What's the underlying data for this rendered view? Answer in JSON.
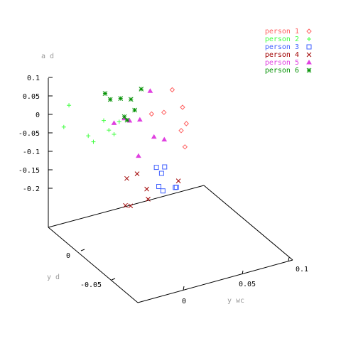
{
  "chart_data": {
    "type": "scatter",
    "title": "",
    "xlabel": "y wc",
    "ylabel": "y d",
    "zlabel": "a d",
    "legend_position": "top-right",
    "x_ticks": [
      "0",
      "0.05",
      "0.1"
    ],
    "y_ticks": [
      "0",
      "-0.05"
    ],
    "z_ticks": [
      "0.1",
      "0.05",
      "0",
      "-0.05",
      "-0.1",
      "-0.15",
      "-0.2"
    ],
    "series": [
      {
        "name": "person 1",
        "marker": "diamond",
        "color": "#ff6060",
        "points": [
          [
            0.05,
            0.05,
            -0.07
          ],
          [
            0.062,
            0.05,
            -0.075
          ],
          [
            0.07,
            0.05,
            -0.02
          ],
          [
            0.07,
            0.04,
            -0.11
          ],
          [
            0.075,
            0.04,
            -0.095
          ],
          [
            0.08,
            0.05,
            -0.075
          ],
          [
            0.065,
            0.03,
            -0.13
          ]
        ]
      },
      {
        "name": "person 2",
        "marker": "plus",
        "color": "#40ff40",
        "points": [
          [
            -0.035,
            0.05,
            -0.04
          ],
          [
            -0.03,
            0.05,
            0.015
          ],
          [
            -0.02,
            0.04,
            -0.055
          ],
          [
            -0.015,
            0.04,
            -0.075
          ],
          [
            -0.005,
            0.04,
            -0.025
          ],
          [
            0.0,
            0.04,
            -0.055
          ],
          [
            0.005,
            0.04,
            -0.07
          ],
          [
            0.01,
            0.04,
            -0.04
          ]
        ]
      },
      {
        "name": "person 3",
        "marker": "square",
        "color": "#4060ff",
        "points": [
          [
            0.02,
            0.01,
            -0.11
          ],
          [
            0.025,
            0.01,
            -0.13
          ],
          [
            0.028,
            0.01,
            -0.115
          ],
          [
            0.018,
            0.005,
            -0.15
          ],
          [
            0.022,
            0.005,
            -0.165
          ],
          [
            0.035,
            0.005,
            -0.165
          ],
          [
            0.034,
            0.005,
            -0.165
          ]
        ]
      },
      {
        "name": "person 4",
        "marker": "cross",
        "color": "#a00000",
        "points": [
          [
            -0.01,
            0.01,
            -0.19
          ],
          [
            -0.005,
            0.01,
            -0.195
          ],
          [
            0.0,
            0.02,
            -0.145
          ],
          [
            0.01,
            0.02,
            -0.14
          ],
          [
            0.012,
            0.01,
            -0.19
          ],
          [
            0.015,
            0.015,
            -0.175
          ],
          [
            0.05,
            0.02,
            -0.19
          ]
        ]
      },
      {
        "name": "person 5",
        "marker": "triangle",
        "color": "#e040e0",
        "points": [
          [
            0.005,
            0.04,
            -0.04
          ],
          [
            0.015,
            0.04,
            -0.035
          ],
          [
            0.02,
            0.04,
            -0.045
          ],
          [
            0.02,
            0.03,
            -0.12
          ],
          [
            0.03,
            0.04,
            -0.05
          ],
          [
            0.035,
            0.03,
            -0.08
          ],
          [
            0.04,
            0.04,
            0.02
          ],
          [
            0.045,
            0.03,
            -0.095
          ]
        ]
      },
      {
        "name": "person 6",
        "marker": "star",
        "color": "#009000",
        "points": [
          [
            0.005,
            0.05,
            0.02
          ],
          [
            0.01,
            0.05,
            0.0
          ],
          [
            0.015,
            0.04,
            -0.03
          ],
          [
            0.02,
            0.05,
            -0.005
          ],
          [
            0.022,
            0.045,
            -0.055
          ],
          [
            0.025,
            0.04,
            -0.02
          ],
          [
            0.03,
            0.05,
            -0.015
          ],
          [
            0.04,
            0.05,
            0.005
          ]
        ]
      }
    ]
  }
}
